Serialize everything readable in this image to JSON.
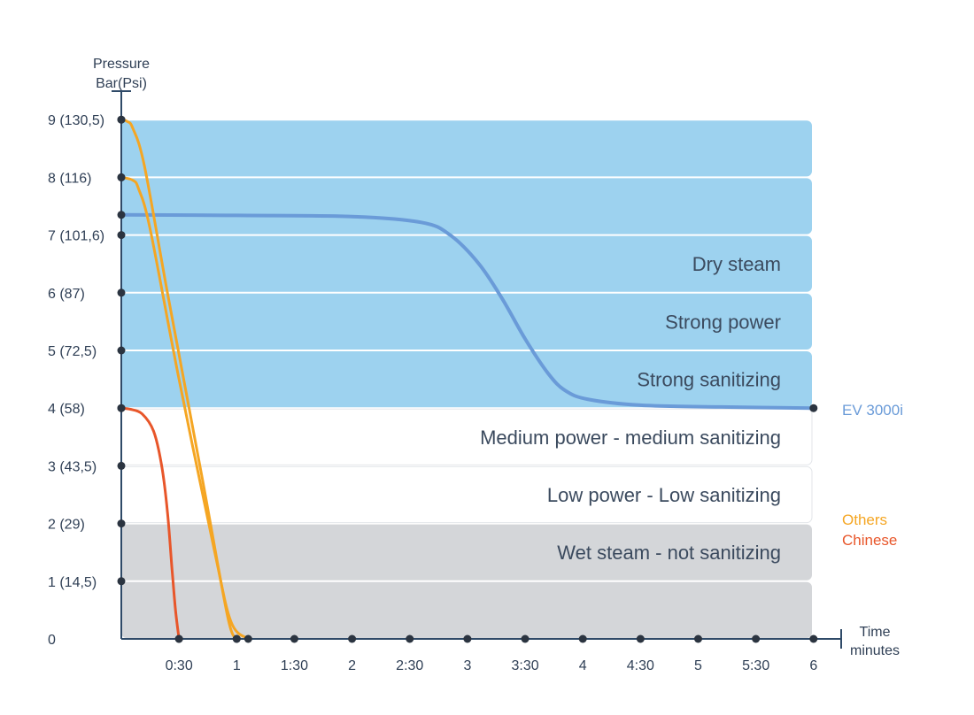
{
  "chart_data": {
    "type": "line",
    "y_axis": {
      "title_line1": "Pressure",
      "title_line2": "Bar(Psi)",
      "range": [
        0,
        9
      ],
      "ticks": [
        {
          "value": 0,
          "label": "0"
        },
        {
          "value": 1,
          "label": "1 (14,5)"
        },
        {
          "value": 2,
          "label": "2 (29)"
        },
        {
          "value": 3,
          "label": "3 (43,5)"
        },
        {
          "value": 4,
          "label": "4 (58)"
        },
        {
          "value": 5,
          "label": "5 (72,5)"
        },
        {
          "value": 6,
          "label": "6 (87)"
        },
        {
          "value": 7,
          "label": "7 (101,6)"
        },
        {
          "value": 8,
          "label": "8 (116)"
        },
        {
          "value": 9,
          "label": "9 (130,5)"
        }
      ]
    },
    "x_axis": {
      "title_line1": "Time",
      "title_line2": "minutes",
      "range": [
        0,
        6
      ],
      "ticks": [
        {
          "value": 0.5,
          "label": "0:30"
        },
        {
          "value": 1,
          "label": "1"
        },
        {
          "value": 1.5,
          "label": "1:30"
        },
        {
          "value": 2,
          "label": "2"
        },
        {
          "value": 2.5,
          "label": "2:30"
        },
        {
          "value": 3,
          "label": "3"
        },
        {
          "value": 3.5,
          "label": "3:30"
        },
        {
          "value": 4,
          "label": "4"
        },
        {
          "value": 4.5,
          "label": "4:30"
        },
        {
          "value": 5,
          "label": "5"
        },
        {
          "value": 5.5,
          "label": "5:30"
        },
        {
          "value": 6,
          "label": "6"
        }
      ]
    },
    "bands": [
      {
        "from": 8,
        "to": 9,
        "label": "",
        "zone": "blue",
        "color": "#9dd2ef"
      },
      {
        "from": 7,
        "to": 8,
        "label": "",
        "zone": "blue",
        "color": "#9dd2ef"
      },
      {
        "from": 6,
        "to": 7,
        "label": "Dry steam",
        "zone": "blue",
        "color": "#9dd2ef"
      },
      {
        "from": 5,
        "to": 6,
        "label": "Strong power",
        "zone": "blue",
        "color": "#9dd2ef"
      },
      {
        "from": 4,
        "to": 5,
        "label": "Strong sanitizing",
        "zone": "blue",
        "color": "#9dd2ef"
      },
      {
        "from": 3,
        "to": 4,
        "label": "Medium power - medium sanitizing",
        "zone": "white",
        "color": "#ffffff"
      },
      {
        "from": 2,
        "to": 3,
        "label": "Low power - Low sanitizing",
        "zone": "white",
        "color": "#ffffff"
      },
      {
        "from": 1,
        "to": 2,
        "label": "Wet steam - not sanitizing",
        "zone": "gray",
        "color": "#d4d6d9"
      },
      {
        "from": 0,
        "to": 1,
        "label": "",
        "zone": "gray",
        "color": "#d4d6d9"
      }
    ],
    "series": [
      {
        "name": "EV 3000i",
        "color": "#6a9bd8",
        "points": [
          [
            0,
            7.35
          ],
          [
            1.0,
            7.34
          ],
          [
            2.0,
            7.32
          ],
          [
            2.6,
            7.22
          ],
          [
            2.85,
            7.0
          ],
          [
            3.1,
            6.5
          ],
          [
            3.3,
            5.9
          ],
          [
            3.5,
            5.2
          ],
          [
            3.7,
            4.6
          ],
          [
            3.85,
            4.3
          ],
          [
            4.05,
            4.15
          ],
          [
            4.5,
            4.05
          ],
          [
            5.2,
            4.02
          ],
          [
            6.0,
            4.0
          ]
        ]
      },
      {
        "name": "Others",
        "color": "#f5a623",
        "points": [
          [
            0,
            9.0
          ],
          [
            0.05,
            8.97
          ],
          [
            0.1,
            8.85
          ],
          [
            0.2,
            8.2
          ],
          [
            0.4,
            6.0
          ],
          [
            0.7,
            2.8
          ],
          [
            0.92,
            0.4
          ],
          [
            1.0,
            0.0
          ]
        ]
      },
      {
        "name": "Others",
        "color": "#f5a623",
        "points": [
          [
            0,
            8.0
          ],
          [
            0.1,
            7.95
          ],
          [
            0.15,
            7.8
          ],
          [
            0.25,
            7.1
          ],
          [
            0.5,
            4.5
          ],
          [
            0.8,
            1.6
          ],
          [
            0.95,
            0.3
          ],
          [
            1.1,
            0.0
          ]
        ]
      },
      {
        "name": "Chinese",
        "color": "#e8562a",
        "points": [
          [
            0,
            4.0
          ],
          [
            0.08,
            3.98
          ],
          [
            0.18,
            3.9
          ],
          [
            0.28,
            3.6
          ],
          [
            0.35,
            3.0
          ],
          [
            0.4,
            2.2
          ],
          [
            0.44,
            1.2
          ],
          [
            0.47,
            0.5
          ],
          [
            0.5,
            0.0
          ]
        ]
      }
    ],
    "legend": [
      {
        "label": "EV 3000i",
        "color": "#6a9bd8"
      },
      {
        "label": "Others",
        "color": "#f5a623"
      },
      {
        "label": "Chinese",
        "color": "#e8562a"
      }
    ],
    "axis_color": "#2f4a68",
    "dot_color": "#2b3440"
  }
}
